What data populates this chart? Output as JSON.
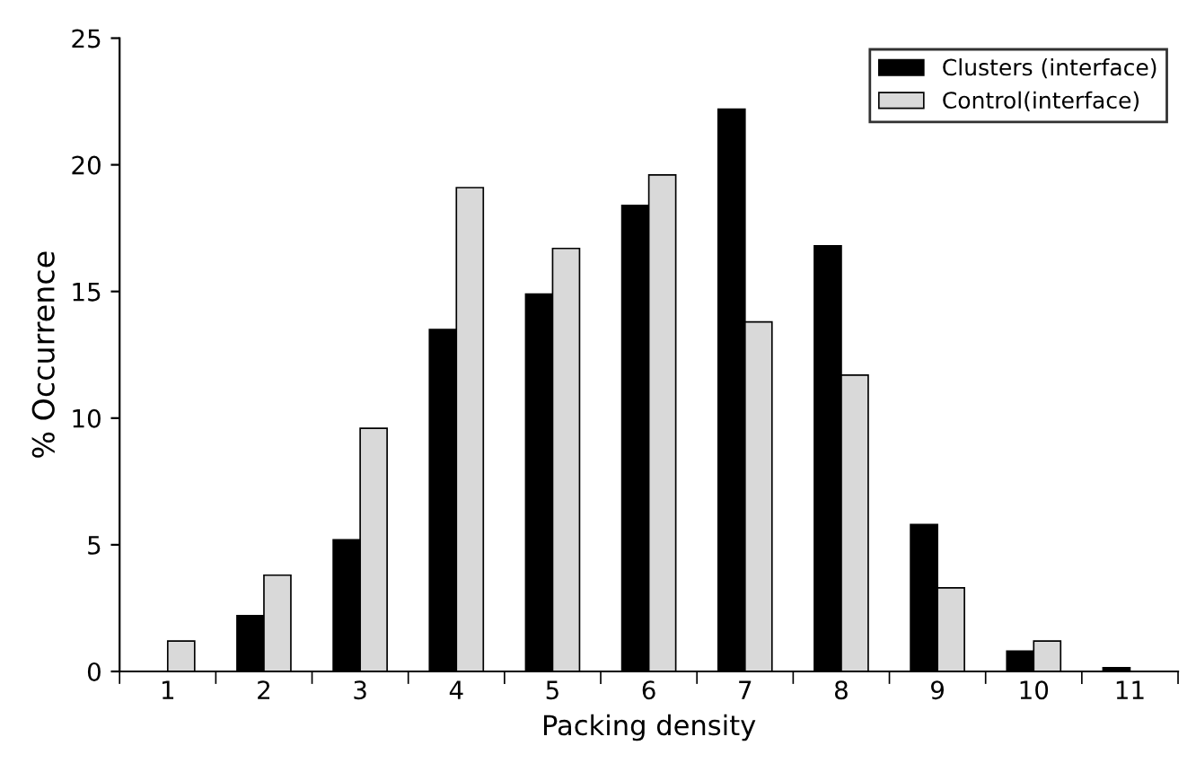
{
  "chart_data": {
    "type": "bar",
    "xlabel": "Packing density",
    "ylabel": "% Occurrence",
    "categories": [
      "1",
      "2",
      "3",
      "4",
      "5",
      "6",
      "7",
      "8",
      "9",
      "10",
      "11"
    ],
    "series": [
      {
        "name": "Clusters (interface)",
        "color": "#000000",
        "values": [
          0,
          2.2,
          5.2,
          13.5,
          14.9,
          18.4,
          22.2,
          16.8,
          5.8,
          0.8,
          0.15
        ]
      },
      {
        "name": "Control(interface)",
        "color": "#d9d9d9",
        "values": [
          1.2,
          3.8,
          9.6,
          19.1,
          16.7,
          19.6,
          13.8,
          11.7,
          3.3,
          1.2,
          null
        ]
      }
    ],
    "ylim": [
      0,
      25
    ],
    "yticks": [
      0,
      5,
      10,
      15,
      20,
      25
    ],
    "grid": false,
    "legend": "top right"
  }
}
